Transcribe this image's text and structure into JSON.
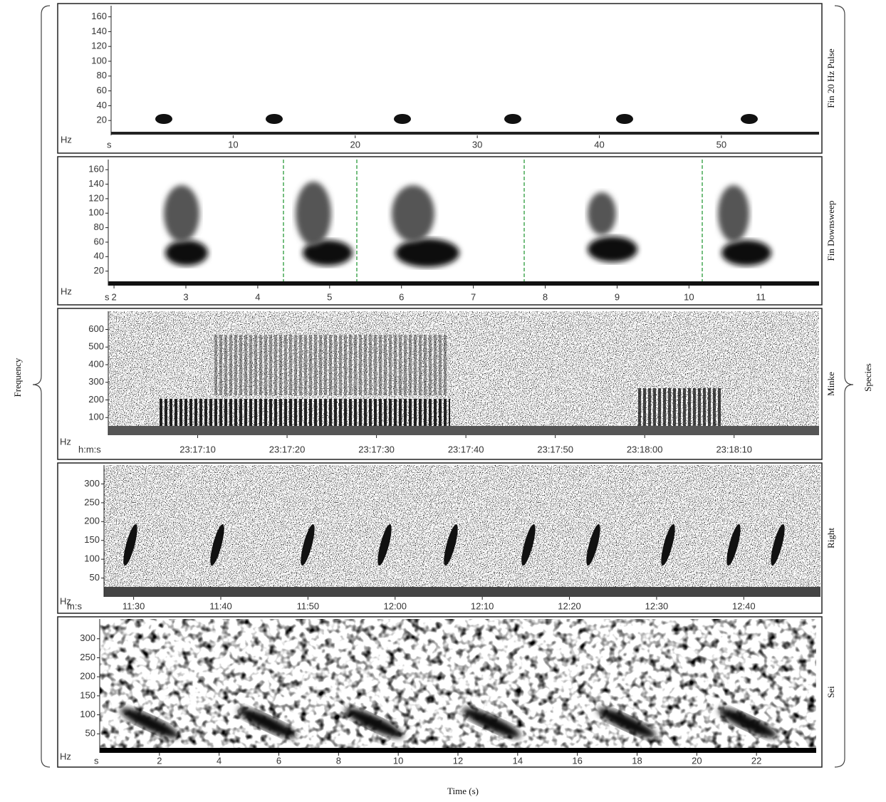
{
  "chart_data": [
    {
      "type": "spectrogram",
      "species": "Fin 20 Hz Pulse",
      "y_unit": "Hz",
      "x_unit": "s",
      "ylim": [
        0,
        175
      ],
      "yticks": [
        20,
        40,
        60,
        80,
        100,
        120,
        140,
        160
      ],
      "xlim": [
        0,
        58
      ],
      "xticks": [
        10,
        20,
        30,
        40,
        50
      ]
    },
    {
      "type": "spectrogram",
      "species": "Fin Downsweep",
      "y_unit": "Hz",
      "x_unit": "s",
      "ylim": [
        0,
        174
      ],
      "yticks": [
        20,
        40,
        60,
        80,
        100,
        120,
        140,
        160
      ],
      "xlim": [
        1.92,
        11.81
      ],
      "xticks": [
        2,
        3,
        4,
        5,
        6,
        7,
        8,
        9,
        10,
        11
      ]
    },
    {
      "type": "spectrogram",
      "species": "Minke",
      "y_unit": "Hz",
      "x_unit": "h:m:s",
      "ylim": [
        0,
        703
      ],
      "yticks": [
        100,
        200,
        300,
        400,
        500,
        600
      ],
      "xlim": [
        83820,
        83899.5
      ],
      "xticks": [
        {
          "value": 83830,
          "label": "23:17:10"
        },
        {
          "value": 83840,
          "label": "23:17:20"
        },
        {
          "value": 83850,
          "label": "23:17:30"
        },
        {
          "value": 83860,
          "label": "23:17:40"
        },
        {
          "value": 83870,
          "label": "23:17:50"
        },
        {
          "value": 83880,
          "label": "23:18:00"
        },
        {
          "value": 83890,
          "label": "23:18:10"
        }
      ]
    },
    {
      "type": "spectrogram",
      "species": "Right",
      "y_unit": "Hz",
      "x_unit": "m:s",
      "ylim": [
        0,
        350
      ],
      "yticks": [
        50,
        100,
        150,
        200,
        250,
        300
      ],
      "xlim": [
        686.6,
        768.8
      ],
      "xticks": [
        {
          "value": 690,
          "label": "11:30"
        },
        {
          "value": 700,
          "label": "11:40"
        },
        {
          "value": 710,
          "label": "11:50"
        },
        {
          "value": 720,
          "label": "12:00"
        },
        {
          "value": 730,
          "label": "12:10"
        },
        {
          "value": 740,
          "label": "12:20"
        },
        {
          "value": 750,
          "label": "12:30"
        },
        {
          "value": 760,
          "label": "12:40"
        }
      ]
    },
    {
      "type": "spectrogram",
      "species": "Sei",
      "y_unit": "Hz",
      "x_unit": "s",
      "ylim": [
        0,
        352
      ],
      "yticks": [
        50,
        100,
        150,
        200,
        250,
        300
      ],
      "xlim": [
        0,
        24
      ],
      "xticks": [
        2,
        4,
        6,
        8,
        10,
        12,
        14,
        16,
        18,
        20,
        22
      ]
    }
  ],
  "y_title": "Frequency",
  "x_title": "Time (s)",
  "group_title": "Species"
}
